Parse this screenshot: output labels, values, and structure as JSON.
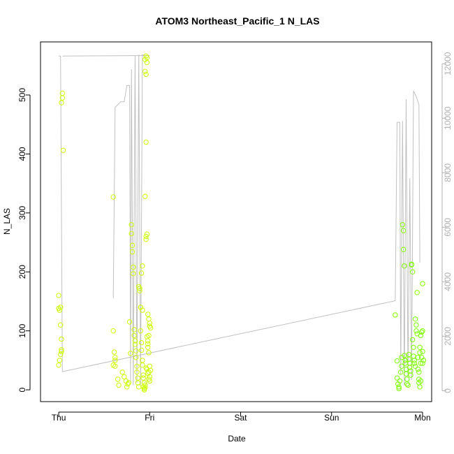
{
  "chart_data": {
    "type": "scatter",
    "title": "ATOM3 Northeast_Pacific_1 N_LAS",
    "xlabel": "Date",
    "ylabel": "N_LAS",
    "x_ticks": [
      "Thu",
      "Fri",
      "Sat",
      "Sun",
      "Mon"
    ],
    "xlim": [
      -0.2,
      4.1
    ],
    "ylim": [
      -20,
      590
    ],
    "y_ticks": [
      0,
      100,
      200,
      300,
      400,
      500
    ],
    "y2lim": [
      -400,
      12800
    ],
    "y2_ticks": [
      0,
      2000,
      4000,
      6000,
      8000,
      10000,
      12000
    ],
    "grid": false,
    "colors": {
      "points_yellow": "#ccff00",
      "points_green": "#7fff00",
      "line": "#c0c0c0",
      "axis": "#000000",
      "right_axis": "#b0b0b0"
    },
    "series": [
      {
        "type": "scatter",
        "axis": "left",
        "points": [
          [
            0.0,
            160
          ],
          [
            0.0,
            138
          ],
          [
            0.01,
            135
          ],
          [
            0.02,
            140
          ],
          [
            0.02,
            110
          ],
          [
            0.03,
            68
          ],
          [
            0.03,
            65
          ],
          [
            0.02,
            60
          ],
          [
            0.01,
            50
          ],
          [
            0.0,
            42
          ],
          [
            0.03,
            86
          ],
          [
            0.04,
            503
          ],
          [
            0.04,
            495
          ],
          [
            0.03,
            487
          ],
          [
            0.05,
            406
          ],
          [
            0.6,
            327
          ],
          [
            0.6,
            100
          ],
          [
            0.61,
            64
          ],
          [
            0.62,
            55
          ],
          [
            0.62,
            50
          ],
          [
            0.6,
            42
          ],
          [
            0.62,
            40
          ],
          [
            0.65,
            18
          ],
          [
            0.66,
            8
          ],
          [
            0.7,
            30
          ],
          [
            0.72,
            22
          ],
          [
            0.74,
            15
          ],
          [
            0.75,
            5
          ],
          [
            0.76,
            10
          ],
          [
            0.77,
            12
          ],
          [
            0.78,
            115
          ],
          [
            0.79,
            62
          ],
          [
            0.8,
            280
          ],
          [
            0.8,
            265
          ],
          [
            0.81,
            245
          ],
          [
            0.81,
            234
          ],
          [
            0.82,
            208
          ],
          [
            0.82,
            197
          ],
          [
            0.83,
            102
          ],
          [
            0.83,
            92
          ],
          [
            0.84,
            83
          ],
          [
            0.84,
            77
          ],
          [
            0.85,
            66
          ],
          [
            0.85,
            55
          ],
          [
            0.86,
            40
          ],
          [
            0.86,
            30
          ],
          [
            0.87,
            20
          ],
          [
            0.87,
            12
          ],
          [
            0.88,
            5
          ],
          [
            0.88,
            175
          ],
          [
            0.89,
            172
          ],
          [
            0.89,
            168
          ],
          [
            0.9,
            140
          ],
          [
            0.9,
            100
          ],
          [
            0.91,
            80
          ],
          [
            0.91,
            67
          ],
          [
            0.92,
            50
          ],
          [
            0.92,
            42
          ],
          [
            0.93,
            20
          ],
          [
            0.93,
            5
          ],
          [
            0.94,
            0
          ],
          [
            0.94,
            2
          ],
          [
            0.95,
            4
          ],
          [
            0.95,
            8
          ],
          [
            0.96,
            260
          ],
          [
            0.96,
            255
          ],
          [
            0.97,
            264
          ],
          [
            0.97,
            90
          ],
          [
            0.98,
            83
          ],
          [
            0.98,
            72
          ],
          [
            0.99,
            63
          ],
          [
            0.99,
            30
          ],
          [
            1.0,
            22
          ],
          [
            1.0,
            15
          ],
          [
            0.97,
            35
          ],
          [
            0.98,
            28
          ],
          [
            0.99,
            18
          ],
          [
            0.96,
            37
          ],
          [
            1.0,
            40
          ],
          [
            1.01,
            33
          ],
          [
            0.95,
            560
          ],
          [
            0.95,
            540
          ],
          [
            0.96,
            566
          ],
          [
            0.97,
            563
          ],
          [
            0.97,
            555
          ],
          [
            0.96,
            535
          ],
          [
            0.96,
            420
          ],
          [
            0.95,
            328
          ],
          [
            0.98,
            128
          ],
          [
            0.99,
            120
          ],
          [
            1.0,
            113
          ],
          [
            1.0,
            108
          ],
          [
            1.01,
            105
          ],
          [
            0.99,
            92
          ],
          [
            0.98,
            78
          ],
          [
            0.92,
            210
          ],
          [
            0.91,
            198
          ],
          [
            0.92,
            135
          ],
          [
            0.93,
            25
          ],
          [
            0.94,
            12
          ]
        ]
      },
      {
        "type": "scatter",
        "axis": "left",
        "points": [
          [
            3.7,
            127
          ],
          [
            3.72,
            49
          ],
          [
            3.72,
            20
          ],
          [
            3.73,
            10
          ],
          [
            3.74,
            5
          ],
          [
            3.74,
            2
          ],
          [
            3.75,
            15
          ],
          [
            3.76,
            30
          ],
          [
            3.77,
            55
          ],
          [
            3.77,
            40
          ],
          [
            3.78,
            280
          ],
          [
            3.79,
            270
          ],
          [
            3.79,
            238
          ],
          [
            3.8,
            210
          ],
          [
            3.8,
            58
          ],
          [
            3.81,
            50
          ],
          [
            3.81,
            45
          ],
          [
            3.82,
            35
          ],
          [
            3.82,
            27
          ],
          [
            3.83,
            18
          ],
          [
            3.83,
            10
          ],
          [
            3.84,
            8
          ],
          [
            3.85,
            60
          ],
          [
            3.85,
            52
          ],
          [
            3.86,
            45
          ],
          [
            3.86,
            38
          ],
          [
            3.87,
            32
          ],
          [
            3.87,
            25
          ],
          [
            3.88,
            212
          ],
          [
            3.88,
            213
          ],
          [
            3.89,
            200
          ],
          [
            3.89,
            85
          ],
          [
            3.9,
            72
          ],
          [
            3.9,
            57
          ],
          [
            3.91,
            50
          ],
          [
            3.91,
            45
          ],
          [
            3.92,
            40
          ],
          [
            3.92,
            120
          ],
          [
            3.93,
            110
          ],
          [
            3.93,
            100
          ],
          [
            3.94,
            165
          ],
          [
            3.94,
            95
          ],
          [
            3.95,
            55
          ],
          [
            3.95,
            35
          ],
          [
            3.96,
            18
          ],
          [
            3.96,
            12
          ],
          [
            3.97,
            5
          ],
          [
            3.97,
            63
          ],
          [
            3.98,
            45
          ],
          [
            3.98,
            92
          ],
          [
            3.99,
            98
          ],
          [
            4.0,
            100
          ],
          [
            4.0,
            180
          ],
          [
            4.0,
            65
          ],
          [
            3.99,
            55
          ],
          [
            4.01,
            50
          ],
          [
            4.0,
            45
          ],
          [
            3.98,
            15
          ],
          [
            3.97,
            72
          ],
          [
            3.96,
            30
          ]
        ]
      },
      {
        "type": "line",
        "axis": "right",
        "points": [
          [
            0.0,
            12280
          ],
          [
            0.02,
            12280
          ],
          [
            0.04,
            700
          ],
          [
            3.7,
            3300
          ],
          [
            3.72,
            9850
          ],
          [
            3.75,
            9850
          ],
          [
            3.76,
            600
          ],
          [
            3.78,
            9900
          ],
          [
            3.8,
            200
          ],
          [
            3.82,
            10700
          ],
          [
            3.84,
            500
          ],
          [
            3.86,
            7800
          ],
          [
            3.88,
            400
          ],
          [
            3.9,
            11000
          ],
          [
            3.93,
            10800
          ],
          [
            3.96,
            10500
          ],
          [
            3.97,
            4700
          ]
        ]
      },
      {
        "type": "line",
        "axis": "right",
        "points": [
          [
            0.6,
            3400
          ],
          [
            0.62,
            10400
          ],
          [
            0.68,
            10600
          ],
          [
            0.72,
            10600
          ],
          [
            0.75,
            11200
          ],
          [
            0.78,
            11200
          ],
          [
            0.79,
            300
          ],
          [
            0.8,
            11800
          ],
          [
            0.82,
            200
          ],
          [
            0.84,
            12300
          ],
          [
            0.86,
            300
          ],
          [
            0.88,
            12330
          ],
          [
            0.9,
            200
          ],
          [
            0.92,
            12330
          ],
          [
            0.94,
            12300
          ],
          [
            0.98,
            12300
          ],
          [
            1.0,
            12300
          ],
          [
            0.04,
            12280
          ]
        ]
      }
    ]
  }
}
